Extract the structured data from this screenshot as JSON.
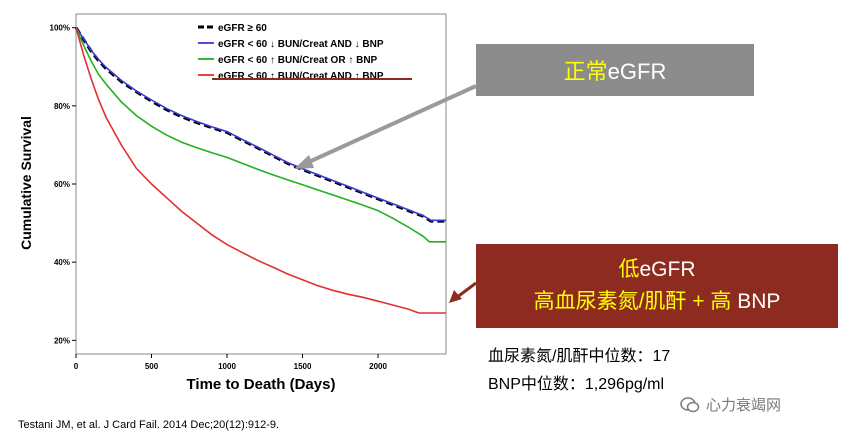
{
  "chart_data": {
    "type": "line",
    "xlabel": "Time to Death (Days)",
    "ylabel": "Cumulative Survival",
    "xlim": [
      0,
      2450
    ],
    "ylim": [
      0.165,
      1.035
    ],
    "x_ticks": [
      0,
      500,
      1000,
      1500,
      2000
    ],
    "x_tick_labels": [
      "0",
      "500",
      "1000",
      "1500",
      "2000"
    ],
    "y_ticks": [
      0.2,
      0.4,
      0.6,
      0.8,
      1.0
    ],
    "y_tick_labels": [
      "20%",
      "40%",
      "60%",
      "80%",
      "100%"
    ],
    "legend_position": "top-center",
    "series": [
      {
        "name": "eGFR ≥ 60",
        "color": "#000000",
        "style": "dashed",
        "points": [
          [
            0,
            1.0
          ],
          [
            50,
            0.97
          ],
          [
            100,
            0.94
          ],
          [
            150,
            0.915
          ],
          [
            200,
            0.895
          ],
          [
            300,
            0.862
          ],
          [
            400,
            0.836
          ],
          [
            500,
            0.812
          ],
          [
            600,
            0.79
          ],
          [
            700,
            0.772
          ],
          [
            800,
            0.757
          ],
          [
            900,
            0.744
          ],
          [
            1000,
            0.732
          ],
          [
            1100,
            0.712
          ],
          [
            1200,
            0.693
          ],
          [
            1300,
            0.673
          ],
          [
            1400,
            0.653
          ],
          [
            1500,
            0.637
          ],
          [
            1600,
            0.622
          ],
          [
            1700,
            0.607
          ],
          [
            1800,
            0.592
          ],
          [
            1900,
            0.577
          ],
          [
            2000,
            0.562
          ],
          [
            2100,
            0.547
          ],
          [
            2200,
            0.532
          ],
          [
            2300,
            0.517
          ],
          [
            2350,
            0.505
          ],
          [
            2450,
            0.505
          ]
        ]
      },
      {
        "name": "eGFR < 60 ↓ BUN/Creat AND ↓ BNP",
        "color": "#3a3ad8",
        "style": "solid",
        "points": [
          [
            0,
            1.0
          ],
          [
            50,
            0.972
          ],
          [
            100,
            0.942
          ],
          [
            150,
            0.918
          ],
          [
            200,
            0.898
          ],
          [
            300,
            0.865
          ],
          [
            400,
            0.838
          ],
          [
            500,
            0.815
          ],
          [
            600,
            0.793
          ],
          [
            700,
            0.775
          ],
          [
            800,
            0.76
          ],
          [
            900,
            0.746
          ],
          [
            1000,
            0.734
          ],
          [
            1100,
            0.714
          ],
          [
            1200,
            0.695
          ],
          [
            1300,
            0.675
          ],
          [
            1400,
            0.655
          ],
          [
            1500,
            0.639
          ],
          [
            1600,
            0.624
          ],
          [
            1700,
            0.609
          ],
          [
            1800,
            0.594
          ],
          [
            1900,
            0.579
          ],
          [
            2000,
            0.564
          ],
          [
            2100,
            0.549
          ],
          [
            2200,
            0.534
          ],
          [
            2300,
            0.519
          ],
          [
            2350,
            0.507
          ],
          [
            2450,
            0.507
          ]
        ]
      },
      {
        "name": "eGFR < 60 ↑ BUN/Creat OR ↑ BNP",
        "color": "#22b022",
        "style": "solid",
        "points": [
          [
            0,
            1.0
          ],
          [
            50,
            0.955
          ],
          [
            100,
            0.915
          ],
          [
            150,
            0.88
          ],
          [
            200,
            0.855
          ],
          [
            300,
            0.81
          ],
          [
            400,
            0.775
          ],
          [
            500,
            0.748
          ],
          [
            600,
            0.725
          ],
          [
            700,
            0.707
          ],
          [
            800,
            0.693
          ],
          [
            900,
            0.68
          ],
          [
            1000,
            0.668
          ],
          [
            1100,
            0.653
          ],
          [
            1200,
            0.638
          ],
          [
            1300,
            0.624
          ],
          [
            1400,
            0.611
          ],
          [
            1500,
            0.598
          ],
          [
            1600,
            0.585
          ],
          [
            1700,
            0.572
          ],
          [
            1800,
            0.559
          ],
          [
            1900,
            0.546
          ],
          [
            2000,
            0.532
          ],
          [
            2100,
            0.512
          ],
          [
            2200,
            0.49
          ],
          [
            2300,
            0.466
          ],
          [
            2340,
            0.452
          ],
          [
            2450,
            0.452
          ]
        ]
      },
      {
        "name": "eGFR < 60 ↑ BUN/Creat AND ↑ BNP",
        "color": "#e23030",
        "style": "solid",
        "points": [
          [
            0,
            1.0
          ],
          [
            50,
            0.93
          ],
          [
            100,
            0.87
          ],
          [
            150,
            0.815
          ],
          [
            200,
            0.77
          ],
          [
            300,
            0.7
          ],
          [
            400,
            0.64
          ],
          [
            500,
            0.6
          ],
          [
            600,
            0.565
          ],
          [
            700,
            0.53
          ],
          [
            800,
            0.5
          ],
          [
            900,
            0.47
          ],
          [
            1000,
            0.445
          ],
          [
            1100,
            0.425
          ],
          [
            1200,
            0.405
          ],
          [
            1300,
            0.388
          ],
          [
            1400,
            0.37
          ],
          [
            1500,
            0.355
          ],
          [
            1600,
            0.34
          ],
          [
            1700,
            0.328
          ],
          [
            1800,
            0.318
          ],
          [
            1900,
            0.31
          ],
          [
            2000,
            0.3
          ],
          [
            2100,
            0.29
          ],
          [
            2200,
            0.28
          ],
          [
            2270,
            0.27
          ],
          [
            2450,
            0.27
          ]
        ]
      }
    ]
  },
  "annotations": {
    "normal": {
      "highlight": "正常",
      "rest": "eGFR"
    },
    "low": {
      "line1_highlight": "低",
      "line1_rest": "eGFR",
      "line2_part1": "高血尿素氮/肌酐",
      "line2_part2": " + ",
      "line2_part3": "高",
      "line2_part4": " BNP"
    },
    "median_1": "血尿素氮/肌酐中位数：17",
    "median_2": "BNP中位数：1,296pg/ml"
  },
  "citation": "Testani JM, et al. J Card Fail. 2014 Dec;20(12):912-9.",
  "watermark": "心力衰竭网"
}
